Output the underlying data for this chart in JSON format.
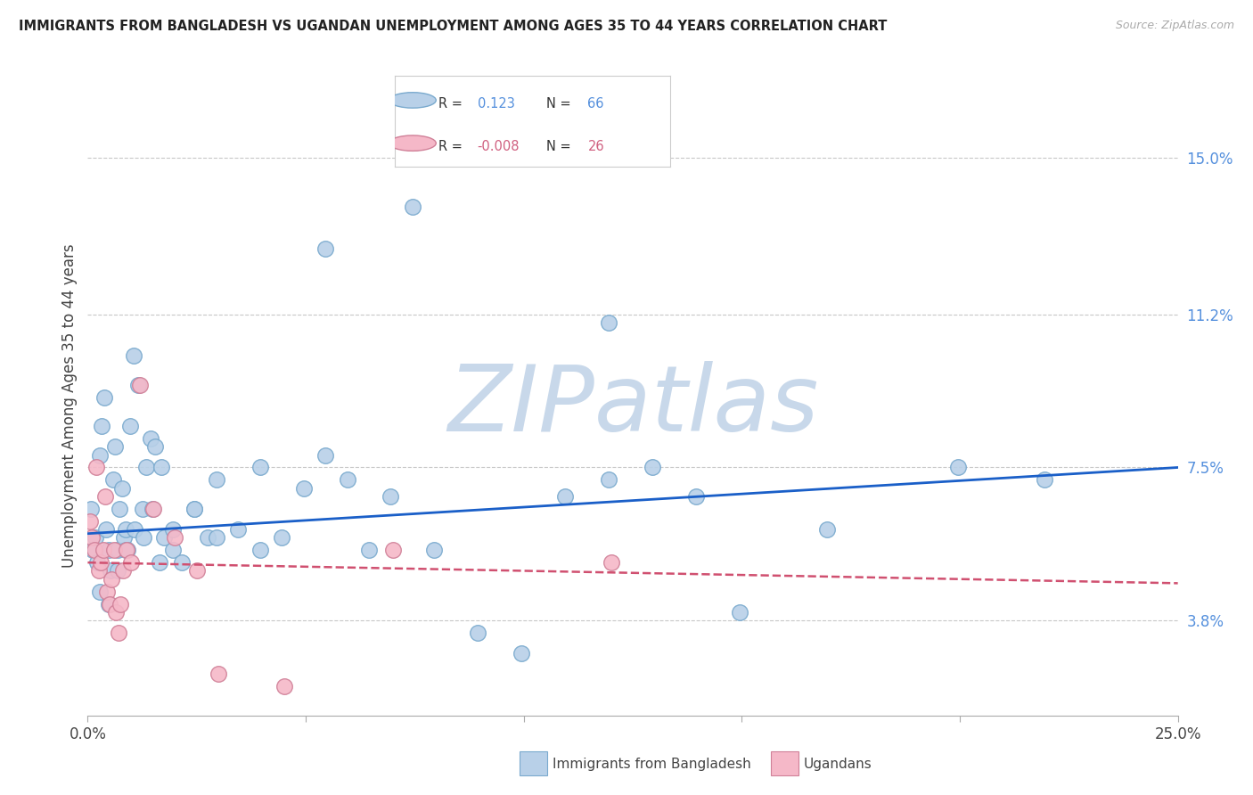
{
  "title": "IMMIGRANTS FROM BANGLADESH VS UGANDAN UNEMPLOYMENT AMONG AGES 35 TO 44 YEARS CORRELATION CHART",
  "source": "Source: ZipAtlas.com",
  "ylabel": "Unemployment Among Ages 35 to 44 years",
  "y_ticks": [
    3.8,
    7.5,
    11.2,
    15.0
  ],
  "y_tick_labels": [
    "3.8%",
    "7.5%",
    "11.2%",
    "15.0%"
  ],
  "xlim": [
    0.0,
    25.0
  ],
  "ylim": [
    1.5,
    16.5
  ],
  "legend1_label": "Immigrants from Bangladesh",
  "legend2_label": "Ugandans",
  "legend1_R": "0.123",
  "legend1_N": "66",
  "legend2_R": "-0.008",
  "legend2_N": "26",
  "blue_scatter_x": [
    0.08,
    0.12,
    0.18,
    0.22,
    0.28,
    0.32,
    0.38,
    0.42,
    0.48,
    0.52,
    0.58,
    0.62,
    0.68,
    0.72,
    0.78,
    0.82,
    0.88,
    0.92,
    0.98,
    1.05,
    1.15,
    1.25,
    1.35,
    1.45,
    1.55,
    1.65,
    1.75,
    1.95,
    2.15,
    2.45,
    2.75,
    2.95,
    3.45,
    3.95,
    4.45,
    4.95,
    5.45,
    5.95,
    6.45,
    6.95,
    7.95,
    8.95,
    9.95,
    10.95,
    11.95,
    12.95,
    13.95,
    14.95,
    16.95,
    19.95,
    21.95,
    0.28,
    0.48,
    0.68,
    0.88,
    1.08,
    1.28,
    1.48,
    1.68,
    1.95,
    2.45,
    2.95,
    3.95,
    5.45,
    7.45,
    11.95
  ],
  "blue_scatter_y": [
    6.5,
    5.5,
    5.8,
    5.2,
    7.8,
    8.5,
    9.2,
    6.0,
    5.5,
    5.0,
    7.2,
    8.0,
    5.5,
    6.5,
    7.0,
    5.8,
    6.0,
    5.5,
    8.5,
    10.2,
    9.5,
    6.5,
    7.5,
    8.2,
    8.0,
    5.2,
    5.8,
    5.5,
    5.2,
    6.5,
    5.8,
    7.2,
    6.0,
    5.5,
    5.8,
    7.0,
    12.8,
    7.2,
    5.5,
    6.8,
    5.5,
    3.5,
    3.0,
    6.8,
    7.2,
    7.5,
    6.8,
    4.0,
    6.0,
    7.5,
    7.2,
    4.5,
    4.2,
    5.0,
    5.5,
    6.0,
    5.8,
    6.5,
    7.5,
    6.0,
    6.5,
    5.8,
    7.5,
    7.8,
    13.8,
    11.0
  ],
  "pink_scatter_x": [
    0.05,
    0.1,
    0.15,
    0.2,
    0.25,
    0.3,
    0.35,
    0.4,
    0.45,
    0.5,
    0.55,
    0.6,
    0.65,
    0.7,
    0.75,
    0.8,
    0.9,
    1.0,
    1.2,
    1.5,
    2.0,
    2.5,
    3.0,
    4.5,
    7.0,
    12.0
  ],
  "pink_scatter_y": [
    6.2,
    5.8,
    5.5,
    7.5,
    5.0,
    5.2,
    5.5,
    6.8,
    4.5,
    4.2,
    4.8,
    5.5,
    4.0,
    3.5,
    4.2,
    5.0,
    5.5,
    5.2,
    9.5,
    6.5,
    5.8,
    5.0,
    2.5,
    2.2,
    5.5,
    5.2
  ],
  "blue_line_x": [
    0.0,
    25.0
  ],
  "blue_line_y": [
    5.9,
    7.5
  ],
  "pink_line_x": [
    0.0,
    25.0
  ],
  "pink_line_y": [
    5.2,
    4.7
  ],
  "watermark": "ZIPatlas",
  "watermark_color": "#c8d8ea",
  "bg_color": "#ffffff",
  "scatter_blue_color": "#b8d0e8",
  "scatter_blue_edge": "#7aaace",
  "scatter_pink_color": "#f5b8c8",
  "scatter_pink_edge": "#d08098",
  "trend_blue_color": "#1a5fc8",
  "trend_pink_color": "#d05070",
  "grid_color": "#c8c8c8",
  "right_tick_color": "#5590dd",
  "pink_tick_color": "#d06080",
  "x_tick_positions": [
    0,
    5,
    10,
    15,
    20,
    25
  ],
  "x_tick_labels": [
    "0.0%",
    "",
    "",
    "",
    "",
    "25.0%"
  ]
}
